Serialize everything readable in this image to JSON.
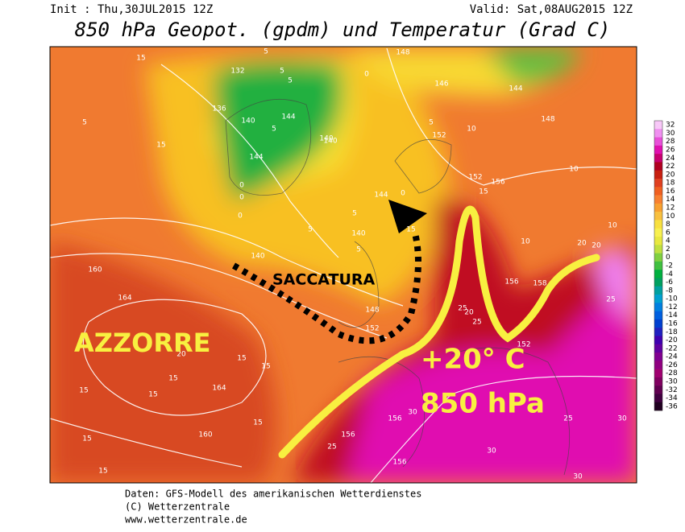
{
  "header": {
    "init": "Init : Thu,30JUL2015 12Z",
    "valid": "Valid: Sat,08AUG2015 12Z",
    "title": "850 hPa Geopot. (gpdm) und Temperatur (Grad C)"
  },
  "annotations": {
    "azzorre": "AZZORRE",
    "saccatura": "SACCATURA",
    "temperature": "+20° C",
    "level": "850 hPa"
  },
  "contour_labels": [
    "15",
    "5",
    "15",
    "132",
    "5",
    "5",
    "5",
    "136",
    "140",
    "5",
    "144",
    "140",
    "0",
    "144",
    "0",
    "148",
    "0",
    "140",
    "146",
    "144",
    "148",
    "5",
    "10",
    "152",
    "5",
    "10",
    "152",
    "156",
    "15",
    "0",
    "140",
    "5",
    "15",
    "144",
    "10",
    "20",
    "20",
    "156",
    "10",
    "140",
    "160",
    "164",
    "148",
    "152",
    "158",
    "25",
    "15",
    "20",
    "15",
    "15",
    "164",
    "15",
    "160",
    "15",
    "15",
    "15",
    "156",
    "156",
    "25",
    "30",
    "20",
    "25",
    "25",
    "156",
    "30",
    "25",
    "30",
    "30",
    "152",
    "15",
    "0",
    "5"
  ],
  "scale": {
    "values": [
      32,
      30,
      28,
      26,
      24,
      22,
      20,
      18,
      16,
      14,
      12,
      10,
      8,
      6,
      4,
      2,
      0,
      -2,
      -4,
      -6,
      -8,
      -10,
      -12,
      -14,
      -16,
      -18,
      -20,
      -22,
      -24,
      -26,
      -28,
      -30,
      -32,
      -34,
      -36
    ],
    "colors": [
      "#f8c8f8",
      "#f090f0",
      "#e850d8",
      "#e010b0",
      "#c80070",
      "#b00020",
      "#c82010",
      "#e04020",
      "#f06020",
      "#f88030",
      "#f8a030",
      "#f8c040",
      "#f8e040",
      "#f8f050",
      "#e8e840",
      "#c0e040",
      "#80d040",
      "#40c040",
      "#00b040",
      "#00a060",
      "#00a0a0",
      "#00a0d0",
      "#0080e0",
      "#0060e0",
      "#0040d0",
      "#2020c0",
      "#4000b0",
      "#6000a0",
      "#800090",
      "#900080",
      "#a00070",
      "#800060",
      "#600050",
      "#400040",
      "#200020"
    ]
  },
  "footer": {
    "line1": "Daten: GFS-Modell des amerikanischen Wetterdienstes",
    "line2": "(C) Wetterzentrale",
    "line3": "www.wetterzentrale.de"
  }
}
